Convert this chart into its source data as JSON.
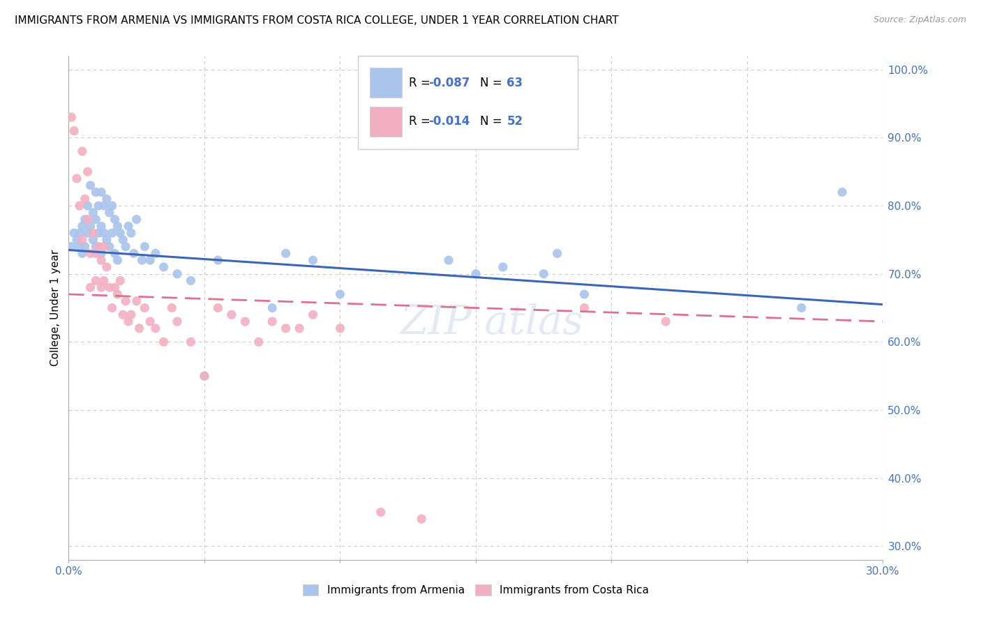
{
  "title": "IMMIGRANTS FROM ARMENIA VS IMMIGRANTS FROM COSTA RICA COLLEGE, UNDER 1 YEAR CORRELATION CHART",
  "source_text": "Source: ZipAtlas.com",
  "ylabel_label": "College, Under 1 year",
  "legend_bottom_left": "Immigrants from Armenia",
  "legend_bottom_right": "Immigrants from Costa Rica",
  "armenia_R": "-0.087",
  "armenia_N": "63",
  "costarica_R": "-0.014",
  "costarica_N": "52",
  "armenia_color": "#aac4ed",
  "costarica_color": "#f2afc2",
  "armenia_line_color": "#3a66b8",
  "costarica_line_color": "#e07090",
  "xmin": 0.0,
  "xmax": 0.3,
  "ymin": 0.28,
  "ymax": 1.02,
  "ytick_min": 0.3,
  "ytick_max": 1.0,
  "ytick_step": 0.1,
  "watermark_text": "ZIPatlas",
  "armenia_scatter_x": [
    0.001,
    0.002,
    0.003,
    0.004,
    0.004,
    0.005,
    0.005,
    0.006,
    0.006,
    0.007,
    0.007,
    0.008,
    0.008,
    0.009,
    0.009,
    0.01,
    0.01,
    0.01,
    0.011,
    0.011,
    0.012,
    0.012,
    0.012,
    0.013,
    0.013,
    0.014,
    0.014,
    0.015,
    0.015,
    0.016,
    0.016,
    0.017,
    0.017,
    0.018,
    0.018,
    0.019,
    0.02,
    0.021,
    0.022,
    0.023,
    0.024,
    0.025,
    0.027,
    0.028,
    0.03,
    0.032,
    0.035,
    0.04,
    0.045,
    0.05,
    0.055,
    0.075,
    0.08,
    0.09,
    0.1,
    0.14,
    0.15,
    0.16,
    0.175,
    0.18,
    0.19,
    0.27,
    0.285
  ],
  "armenia_scatter_y": [
    0.74,
    0.76,
    0.75,
    0.76,
    0.74,
    0.77,
    0.73,
    0.78,
    0.74,
    0.8,
    0.76,
    0.83,
    0.77,
    0.79,
    0.75,
    0.82,
    0.78,
    0.74,
    0.8,
    0.76,
    0.82,
    0.77,
    0.73,
    0.8,
    0.76,
    0.81,
    0.75,
    0.79,
    0.74,
    0.8,
    0.76,
    0.78,
    0.73,
    0.77,
    0.72,
    0.76,
    0.75,
    0.74,
    0.77,
    0.76,
    0.73,
    0.78,
    0.72,
    0.74,
    0.72,
    0.73,
    0.71,
    0.7,
    0.69,
    0.55,
    0.72,
    0.65,
    0.73,
    0.72,
    0.67,
    0.72,
    0.7,
    0.71,
    0.7,
    0.73,
    0.67,
    0.65,
    0.82
  ],
  "costarica_scatter_x": [
    0.001,
    0.002,
    0.003,
    0.004,
    0.005,
    0.005,
    0.006,
    0.007,
    0.007,
    0.008,
    0.008,
    0.009,
    0.01,
    0.01,
    0.011,
    0.012,
    0.012,
    0.013,
    0.013,
    0.014,
    0.015,
    0.016,
    0.017,
    0.018,
    0.019,
    0.02,
    0.021,
    0.022,
    0.023,
    0.025,
    0.026,
    0.028,
    0.03,
    0.032,
    0.035,
    0.038,
    0.04,
    0.045,
    0.05,
    0.055,
    0.06,
    0.065,
    0.07,
    0.075,
    0.08,
    0.085,
    0.09,
    0.1,
    0.115,
    0.13,
    0.19,
    0.22
  ],
  "costarica_scatter_y": [
    0.93,
    0.91,
    0.84,
    0.8,
    0.75,
    0.88,
    0.81,
    0.78,
    0.85,
    0.73,
    0.68,
    0.76,
    0.73,
    0.69,
    0.74,
    0.72,
    0.68,
    0.74,
    0.69,
    0.71,
    0.68,
    0.65,
    0.68,
    0.67,
    0.69,
    0.64,
    0.66,
    0.63,
    0.64,
    0.66,
    0.62,
    0.65,
    0.63,
    0.62,
    0.6,
    0.65,
    0.63,
    0.6,
    0.55,
    0.65,
    0.64,
    0.63,
    0.6,
    0.63,
    0.62,
    0.62,
    0.64,
    0.62,
    0.35,
    0.34,
    0.65,
    0.63
  ]
}
